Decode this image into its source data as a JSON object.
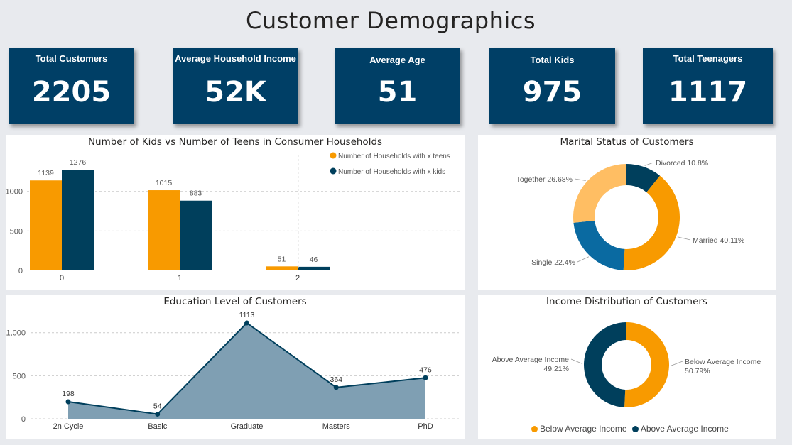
{
  "dashboard": {
    "title": "Customer Demographics",
    "kpis": [
      {
        "label": "Total Customers",
        "value": "2205"
      },
      {
        "label": "Average Household Income",
        "value": "52K"
      },
      {
        "label": "Average Age",
        "value": "51"
      },
      {
        "label": "Total Kids",
        "value": "975"
      },
      {
        "label": "Total Teenagers",
        "value": "1117"
      }
    ]
  },
  "colors": {
    "orange": "#f89a00",
    "navy": "#003f5c",
    "light_orange": "#ffbe63",
    "blue": "#0a6aa1",
    "area_fill": "#7f9fb3"
  },
  "chart_data": [
    {
      "type": "bar",
      "title": "Number of Kids vs Number of Teens in Consumer Households",
      "categories": [
        "0",
        "1",
        "2"
      ],
      "series": [
        {
          "name": "Number of Households with x teens",
          "values": [
            1139,
            1015,
            51
          ],
          "color": "#f89a00"
        },
        {
          "name": "Number of Households with x kids",
          "values": [
            1276,
            883,
            46
          ],
          "color": "#003f5c"
        }
      ],
      "ylim": [
        0,
        1276
      ],
      "yticks": [
        0,
        500,
        1000
      ],
      "ytick_labels": [
        "0",
        "500",
        "1000"
      ],
      "grid": true,
      "legend": "top-right"
    },
    {
      "type": "pie",
      "title": "Marital Status of Customers",
      "labels": [
        "Divorced",
        "Married",
        "Single",
        "Together"
      ],
      "values": [
        10.8,
        40.11,
        22.4,
        26.68
      ],
      "display_labels": [
        "Divorced 10.8%",
        "Married 40.11%",
        "Single 22.4%",
        "Together 26.68%"
      ],
      "colors": [
        "#003f5c",
        "#f89a00",
        "#0a6aa1",
        "#ffbe63"
      ],
      "donut": true
    },
    {
      "type": "area",
      "title": "Education Level of Customers",
      "categories": [
        "2n Cycle",
        "Basic",
        "Graduate",
        "Masters",
        "PhD"
      ],
      "values": [
        198,
        54,
        1113,
        364,
        476
      ],
      "ylim": [
        0,
        1113
      ],
      "yticks": [
        0,
        500,
        1000
      ],
      "ytick_labels": [
        "0",
        "500",
        "1,000"
      ],
      "grid": true
    },
    {
      "type": "pie",
      "title": "Income Distribution of Customers",
      "labels": [
        "Below Average Income",
        "Above Average Income"
      ],
      "values": [
        50.79,
        49.21
      ],
      "display_labels": [
        [
          "Below Average Income",
          "50.79%"
        ],
        [
          "Above Average Income",
          "49.21%"
        ]
      ],
      "colors": [
        "#f89a00",
        "#003f5c"
      ],
      "legend_labels": [
        "Below Average Income",
        "Above Average Income"
      ],
      "donut": true,
      "legend": "bottom"
    }
  ]
}
